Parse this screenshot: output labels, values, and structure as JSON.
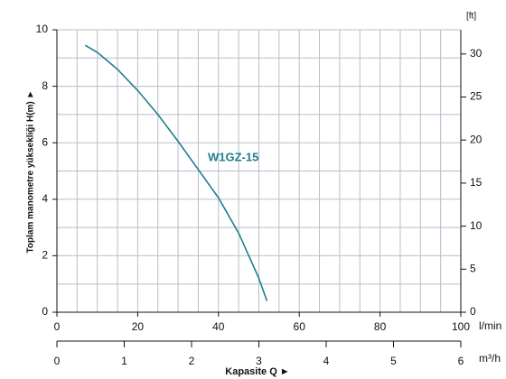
{
  "chart_data": {
    "type": "line",
    "x": [
      7,
      10,
      15,
      20,
      25,
      30,
      35,
      40,
      45,
      50,
      52
    ],
    "series": [
      {
        "name": "W1GZ-15",
        "color": "#1f7f8c",
        "values": [
          9.45,
          9.2,
          8.6,
          7.85,
          7.0,
          6.05,
          5.05,
          4.05,
          2.8,
          1.2,
          0.4
        ]
      }
    ],
    "xlim": [
      0,
      100
    ],
    "xticks": [
      0,
      20,
      40,
      60,
      80,
      100
    ],
    "xlabel_unit": "l/min",
    "x2lim": [
      0,
      6
    ],
    "x2ticks": [
      0,
      1,
      2,
      3,
      4,
      5,
      6
    ],
    "x2label_unit": "m³/h",
    "xlabel": "Kapasite Q  ►",
    "ylim": [
      0,
      10
    ],
    "yticks": [
      0,
      2,
      4,
      6,
      8,
      10
    ],
    "ylabel": "Toplam manometre yüksekliği  H(m)  ►",
    "y2lim": [
      0,
      32.81
    ],
    "y2ticks": [
      0,
      5,
      10,
      15,
      20,
      25,
      30
    ],
    "y2label": "[ft]",
    "grid": {
      "x_step": 5,
      "y_step": 1
    }
  }
}
